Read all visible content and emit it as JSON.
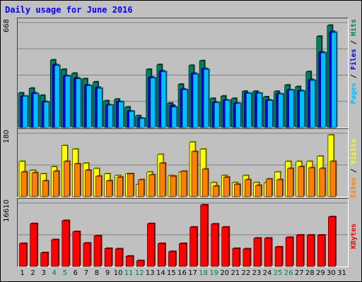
{
  "chart_data": {
    "title": "Daily usage for June 2016",
    "type": "bar",
    "categories": [
      "1",
      "2",
      "3",
      "4",
      "5",
      "6",
      "7",
      "8",
      "9",
      "10",
      "11",
      "12",
      "13",
      "14",
      "15",
      "16",
      "17",
      "18",
      "19",
      "20",
      "21",
      "22",
      "23",
      "24",
      "25",
      "26",
      "27",
      "28",
      "29",
      "30",
      "31"
    ],
    "weekend_days": [
      "4",
      "5",
      "11",
      "12",
      "18",
      "19",
      "25",
      "26"
    ],
    "panels": [
      {
        "id": "hits-files-pages",
        "max_label": "668",
        "ylim": [
          0,
          668
        ],
        "series": [
          {
            "name": "Hits",
            "color": "#00805c",
            "values": [
              220,
              250,
              205,
              430,
              370,
              345,
              310,
              290,
              170,
              180,
              130,
              75,
              370,
              400,
              155,
              275,
              395,
              425,
              185,
              200,
              185,
              230,
              230,
              195,
              230,
              270,
              260,
              355,
              580,
              650,
              0
            ]
          },
          {
            "name": "Files",
            "color": "#0000ff",
            "values": [
              200,
              220,
              165,
              400,
              330,
              315,
              270,
              255,
              145,
              165,
              105,
              60,
              320,
              360,
              140,
              245,
              345,
              375,
              160,
              175,
              155,
              220,
              220,
              175,
              215,
              240,
              235,
              305,
              480,
              610,
              0
            ]
          },
          {
            "name": "Pages",
            "color": "#00c0ff",
            "values": [
              200,
              215,
              162,
              395,
              327,
              310,
              266,
              250,
              143,
              163,
              103,
              58,
              315,
              355,
              130,
              240,
              340,
              370,
              158,
              173,
              153,
              218,
              218,
              172,
              213,
              238,
              232,
              300,
              475,
              605,
              0
            ]
          }
        ]
      },
      {
        "id": "visits-sites",
        "max_label": "180",
        "ylim": [
          0,
          180
        ],
        "series": [
          {
            "name": "Visits",
            "color": "#ffff00",
            "values": [
              100,
              75,
              65,
              85,
              145,
              135,
              95,
              80,
              65,
              60,
              65,
              35,
              70,
              120,
              60,
              70,
              155,
              135,
              40,
              60,
              40,
              60,
              40,
              40,
              70,
              100,
              100,
              100,
              115,
              175,
              0
            ]
          },
          {
            "name": "Sites",
            "color": "#ff8000",
            "values": [
              70,
              68,
              45,
              72,
              100,
              93,
              75,
              58,
              45,
              55,
              65,
              48,
              62,
              95,
              58,
              72,
              128,
              78,
              30,
              55,
              35,
              48,
              32,
              50,
              48,
              80,
              85,
              82,
              80,
              100,
              0
            ]
          }
        ]
      },
      {
        "id": "kbytes",
        "max_label": "16610",
        "ylim": [
          0,
          16610
        ],
        "series": [
          {
            "name": "KBytes",
            "color": "#ff0000",
            "values": [
              6000,
              11200,
              3600,
              7000,
              12000,
              9100,
              6100,
              8000,
              4700,
              4600,
              2700,
              1500,
              11200,
              6000,
              3900,
              6000,
              10300,
              16100,
              11100,
              10300,
              4700,
              4600,
              7400,
              7400,
              5100,
              7600,
              8200,
              8200,
              8200,
              13000,
              0
            ]
          }
        ]
      }
    ],
    "right_labels": [
      {
        "panel": 0,
        "parts": [
          {
            "text": "Pages",
            "color": "#00c0ff"
          },
          {
            "text": " / ",
            "color": "#000000"
          },
          {
            "text": "Files",
            "color": "#0000ff"
          },
          {
            "text": " / ",
            "color": "#000000"
          },
          {
            "text": "Hits",
            "color": "#00805c"
          }
        ]
      },
      {
        "panel": 1,
        "parts": [
          {
            "text": "Sites",
            "color": "#ff8000"
          },
          {
            "text": " / ",
            "color": "#000000"
          },
          {
            "text": "Visits",
            "color": "#ffff00"
          }
        ]
      },
      {
        "panel": 2,
        "parts": [
          {
            "text": "KBytes",
            "color": "#ff0000"
          }
        ]
      }
    ]
  }
}
